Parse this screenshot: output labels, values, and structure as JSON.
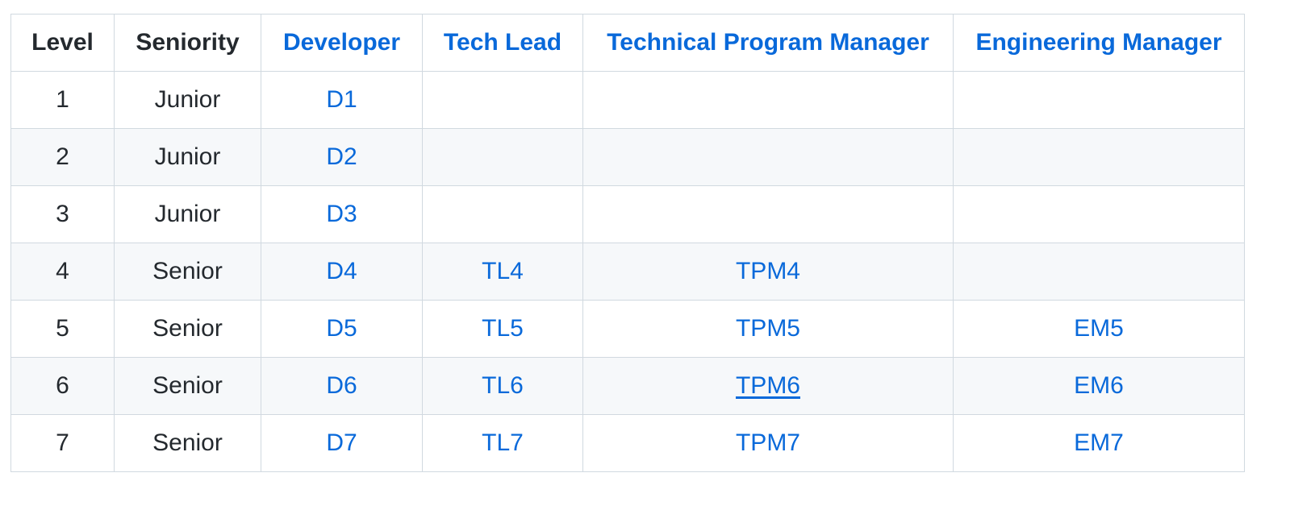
{
  "colors": {
    "link": "#0969da",
    "text": "#24292e",
    "border": "#d1d9e0",
    "stripe": "#f6f8fa"
  },
  "table": {
    "headers": {
      "level": "Level",
      "seniority": "Seniority",
      "developer": "Developer",
      "tech_lead": "Tech Lead",
      "tpm": "Technical Program Manager",
      "em": "Engineering Manager"
    },
    "rows": [
      {
        "level": "1",
        "seniority": "Junior",
        "developer": "D1",
        "tech_lead": "",
        "tpm": "",
        "em": ""
      },
      {
        "level": "2",
        "seniority": "Junior",
        "developer": "D2",
        "tech_lead": "",
        "tpm": "",
        "em": ""
      },
      {
        "level": "3",
        "seniority": "Junior",
        "developer": "D3",
        "tech_lead": "",
        "tpm": "",
        "em": ""
      },
      {
        "level": "4",
        "seniority": "Senior",
        "developer": "D4",
        "tech_lead": "TL4",
        "tpm": "TPM4",
        "em": ""
      },
      {
        "level": "5",
        "seniority": "Senior",
        "developer": "D5",
        "tech_lead": "TL5",
        "tpm": "TPM5",
        "em": "EM5"
      },
      {
        "level": "6",
        "seniority": "Senior",
        "developer": "D6",
        "tech_lead": "TL6",
        "tpm": "TPM6",
        "em": "EM6"
      },
      {
        "level": "7",
        "seniority": "Senior",
        "developer": "D7",
        "tech_lead": "TL7",
        "tpm": "TPM7",
        "em": "EM7"
      }
    ],
    "hovered_link": "TPM6"
  }
}
